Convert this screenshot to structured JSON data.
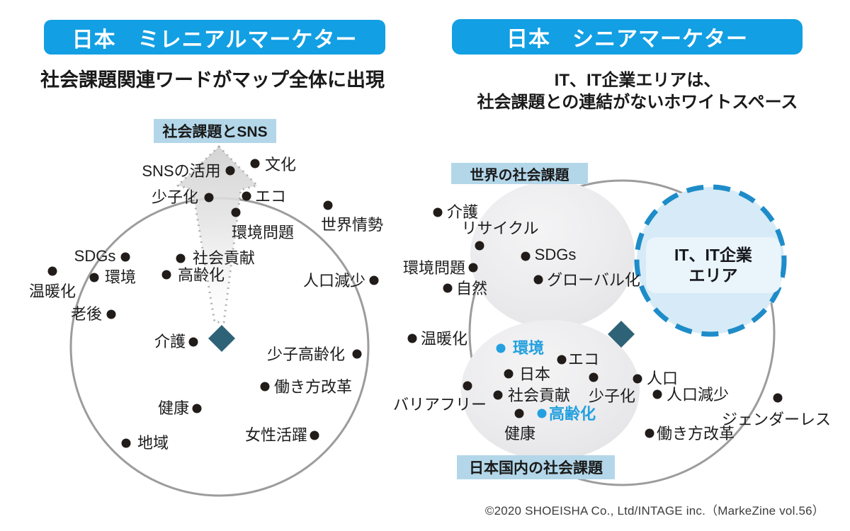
{
  "left_panel": {
    "banner": "日本　ミレニアルマーケター",
    "subtitle": "社会課題関連ワードがマップ全体に出現",
    "callout": "社会課題とSNS",
    "words": [
      {
        "text": "SNSの活用",
        "dot": [
          325,
          241
        ],
        "label": [
          256,
          240
        ]
      },
      {
        "text": "文化",
        "dot": [
          360,
          231
        ],
        "label": [
          396,
          231
        ]
      },
      {
        "text": "少子化",
        "dot": [
          295,
          279
        ],
        "label": [
          247,
          277
        ]
      },
      {
        "text": "エコ",
        "dot": [
          348,
          277
        ],
        "label": [
          382,
          276
        ]
      },
      {
        "text": "環境問題",
        "dot": [
          333,
          300
        ],
        "label": [
          371,
          327
        ]
      },
      {
        "text": "世界情勢",
        "dot": [
          463,
          290
        ],
        "label": [
          497,
          316
        ]
      },
      {
        "text": "SDGs",
        "dot": [
          177,
          363
        ],
        "label": [
          134,
          362
        ]
      },
      {
        "text": "環境",
        "dot": [
          133,
          392
        ],
        "label": [
          170,
          390
        ]
      },
      {
        "text": "温暖化",
        "dot": [
          74,
          383
        ],
        "label": [
          74,
          410
        ]
      },
      {
        "text": "老後",
        "dot": [
          157,
          444
        ],
        "label": [
          122,
          442
        ]
      },
      {
        "text": "社会貢献",
        "dot": [
          255,
          365
        ],
        "label": [
          316,
          363
        ]
      },
      {
        "text": "高齢化",
        "dot": [
          235,
          388
        ],
        "label": [
          284,
          387
        ]
      },
      {
        "text": "介護",
        "dot": [
          273,
          483
        ],
        "label": [
          240,
          481
        ]
      },
      {
        "text": "少子高齢化",
        "dot": [
          504,
          500
        ],
        "label": [
          432,
          499
        ]
      },
      {
        "text": "働き方改革",
        "dot": [
          374,
          546
        ],
        "label": [
          442,
          545
        ]
      },
      {
        "text": "健康",
        "dot": [
          278,
          577
        ],
        "label": [
          245,
          575
        ]
      },
      {
        "text": "地域",
        "dot": [
          178,
          626
        ],
        "label": [
          216,
          624
        ]
      },
      {
        "text": "女性活躍",
        "dot": [
          444,
          615
        ],
        "label": [
          390,
          613
        ]
      },
      {
        "text": "人口減少",
        "dot": [
          528,
          396
        ],
        "label": [
          472,
          395
        ]
      }
    ]
  },
  "right_panel": {
    "banner": "日本　シニアマーケター",
    "subtitle_line1": "IT、IT企業エリアは、",
    "subtitle_line2": "社会課題との連結がないホワイトスペース",
    "label_world": "世界の社会課題",
    "label_japan": "日本国内の社会課題",
    "it_area_line1": "IT、IT企業",
    "it_area_line2": "エリア",
    "words": [
      {
        "text": "介護",
        "dot": [
          618,
          300
        ],
        "label": [
          653,
          298
        ]
      },
      {
        "text": "リサイクル",
        "dot": [
          677,
          347
        ],
        "label": [
          706,
          321
        ]
      },
      {
        "text": "SDGs",
        "dot": [
          742,
          362
        ],
        "label": [
          784,
          360
        ]
      },
      {
        "text": "グローバル化",
        "dot": [
          760,
          395
        ],
        "label": [
          838,
          394
        ]
      },
      {
        "text": "環境問題",
        "dot": [
          668,
          378
        ],
        "label": [
          613,
          377
        ]
      },
      {
        "text": "自然",
        "dot": [
          632,
          407
        ],
        "label": [
          666,
          406
        ]
      },
      {
        "text": "温暖化",
        "dot": [
          582,
          478
        ],
        "label": [
          627,
          477
        ]
      },
      {
        "text": "環境",
        "dot": [
          707,
          492
        ],
        "label": [
          746,
          490
        ],
        "color": "blue"
      },
      {
        "text": "エコ",
        "dot": [
          793,
          508
        ],
        "label": [
          824,
          506
        ]
      },
      {
        "text": "日本",
        "dot": [
          718,
          528
        ],
        "label": [
          755,
          527
        ]
      },
      {
        "text": "社会貢献",
        "dot": [
          703,
          558
        ],
        "label": [
          761,
          557
        ]
      },
      {
        "text": "少子化",
        "dot": [
          838,
          533
        ],
        "label": [
          864,
          558
        ]
      },
      {
        "text": "バリアフリー",
        "dot": [
          660,
          545
        ],
        "label": [
          621,
          570
        ]
      },
      {
        "text": "高齢化",
        "dot": [
          765,
          584
        ],
        "label": [
          808,
          583
        ],
        "color": "blue"
      },
      {
        "text": "健康",
        "dot": [
          733,
          584
        ],
        "label": [
          734,
          611
        ]
      },
      {
        "text": "人口",
        "dot": [
          900,
          535
        ],
        "label": [
          935,
          533
        ]
      },
      {
        "text": "人口減少",
        "dot": [
          928,
          557
        ],
        "label": [
          985,
          556
        ]
      },
      {
        "text": "ジェンダーレス",
        "dot": [
          1098,
          562
        ],
        "label": [
          1096,
          591
        ]
      },
      {
        "text": "働き方改革",
        "dot": [
          917,
          612
        ],
        "label": [
          982,
          611
        ]
      }
    ]
  },
  "footer": "©2020 SHOEISHA Co., Ltd/INTAGE inc.（MarkeZine vol.56）",
  "colors": {
    "banner_blue": "#129fe3",
    "tag_blue": "#b3d7e9",
    "highlight_blue": "#23a0df",
    "dashed_circle_stroke": "#1e8cc8",
    "dashed_circle_fill": "#d6ebf7",
    "diamond_teal": "#2e6277",
    "dot_black": "#211c19",
    "map_circle_gray": "#9c9c9c"
  }
}
